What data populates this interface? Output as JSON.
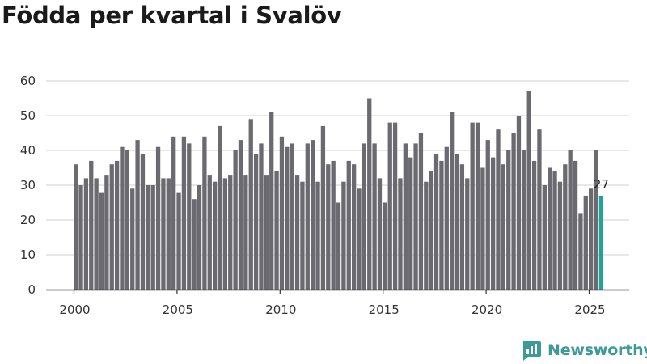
{
  "colors": {
    "bar": "#6b6a70",
    "highlight": "#23a29a",
    "grid": "#d9d9d9",
    "axis": "#333333",
    "brand": "#3d9a97"
  },
  "brand": {
    "name": "Newsworthy",
    "icon": "chart-bubble-icon"
  },
  "chart_data": {
    "type": "bar",
    "title": "Födda per kvartal i Svalöv",
    "xlabel": "",
    "ylabel": "",
    "ylim": [
      0,
      60
    ],
    "yticks": [
      0,
      10,
      20,
      30,
      40,
      50,
      60
    ],
    "xticks": [
      2000,
      2005,
      2010,
      2015,
      2020,
      2025
    ],
    "grid": true,
    "start_period": "2000 Q1",
    "end_period": "2025 Q3",
    "highlight_label": "27",
    "values": [
      36,
      30,
      32,
      37,
      32,
      28,
      33,
      36,
      37,
      41,
      40,
      29,
      43,
      39,
      30,
      30,
      41,
      32,
      32,
      44,
      28,
      44,
      42,
      26,
      30,
      44,
      33,
      31,
      47,
      32,
      33,
      40,
      43,
      33,
      49,
      39,
      42,
      33,
      51,
      34,
      44,
      41,
      42,
      33,
      31,
      42,
      43,
      31,
      47,
      36,
      37,
      25,
      31,
      37,
      36,
      29,
      42,
      55,
      42,
      32,
      25,
      48,
      48,
      32,
      42,
      38,
      42,
      45,
      31,
      34,
      39,
      37,
      41,
      51,
      39,
      36,
      32,
      48,
      48,
      35,
      43,
      38,
      46,
      36,
      40,
      45,
      50,
      40,
      57,
      37,
      46,
      30,
      35,
      34,
      31,
      36,
      40,
      37,
      22,
      27,
      29,
      40,
      27
    ]
  }
}
